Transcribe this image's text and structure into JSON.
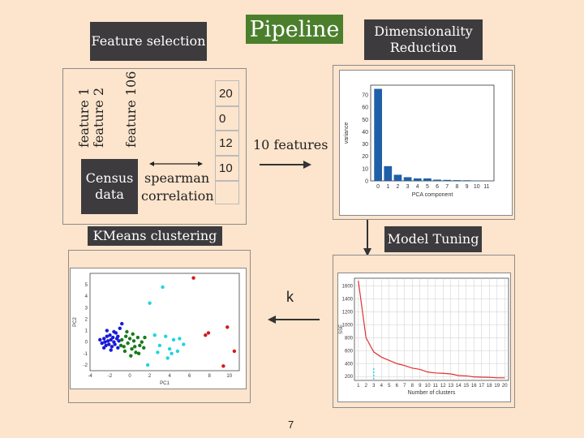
{
  "title": "Pipeline",
  "labels": {
    "feature_selection": "Feature selection",
    "dim_reduction_1": "Dimensionality",
    "dim_reduction_2": "Reduction",
    "kmeans": "KMeans clustering",
    "model_tuning": "Model Tuning"
  },
  "feature_box": {
    "features": [
      "feature 1",
      "feature 2",
      "feature 106"
    ],
    "census_1": "Census",
    "census_2": "data",
    "method_1": "spearman",
    "method_2": "correlation",
    "table_values": [
      "20",
      "0",
      "12",
      "10",
      ""
    ]
  },
  "arrow_labels": {
    "features_out": "10 features",
    "k": "k"
  },
  "page_number": "7",
  "chart_data": [
    {
      "type": "bar",
      "xlabel": "PCA component",
      "ylabel": "variance",
      "categories": [
        "0",
        "1",
        "2",
        "3",
        "4",
        "5",
        "6",
        "7",
        "8",
        "9",
        "10",
        "11"
      ],
      "values": [
        75,
        12,
        5,
        3,
        2,
        2,
        1,
        0.8,
        0.6,
        0.5,
        0.3,
        0.2
      ],
      "ylim": [
        0,
        78
      ],
      "yticks": [
        0,
        10,
        20,
        30,
        40,
        50,
        60,
        70
      ],
      "color": "#1f5fa8"
    },
    {
      "type": "line",
      "xlabel": "Number of clusters",
      "ylabel": "SSE",
      "x": [
        1,
        2,
        3,
        4,
        5,
        6,
        7,
        8,
        9,
        10,
        11,
        12,
        13,
        14,
        15,
        16,
        17,
        18,
        19,
        20
      ],
      "y": [
        1680,
        800,
        580,
        500,
        450,
        400,
        370,
        330,
        310,
        270,
        255,
        250,
        240,
        215,
        210,
        195,
        190,
        188,
        180,
        180
      ],
      "xlim": [
        0.5,
        20.5
      ],
      "ylim": [
        140,
        1720
      ],
      "yticks": [
        200,
        400,
        600,
        800,
        1000,
        1200,
        1400,
        1600
      ],
      "grid": true,
      "color": "#e03030",
      "marker_x": 3
    },
    {
      "type": "scatter",
      "xlabel": "PC1",
      "ylabel": "PC2",
      "xlim": [
        -4,
        11
      ],
      "ylim": [
        -2.5,
        6
      ],
      "xticks": [
        -4,
        -2,
        0,
        2,
        4,
        6,
        8,
        10
      ],
      "yticks": [
        -2,
        -1,
        0,
        1,
        2,
        3,
        4,
        5
      ],
      "series": [
        {
          "color": "#1a1ad8",
          "points": [
            [
              -3,
              0.2
            ],
            [
              -2.8,
              -0.1
            ],
            [
              -2.6,
              0.3
            ],
            [
              -2.5,
              0
            ],
            [
              -2.4,
              -0.3
            ],
            [
              -2.3,
              0.5
            ],
            [
              -2.2,
              0.1
            ],
            [
              -2.1,
              -0.2
            ],
            [
              -2,
              0.6
            ],
            [
              -1.9,
              0.2
            ],
            [
              -1.8,
              -0.4
            ],
            [
              -1.7,
              0.4
            ],
            [
              -1.6,
              0
            ],
            [
              -1.5,
              -0.2
            ],
            [
              -1.4,
              0.8
            ],
            [
              -1.3,
              0.3
            ],
            [
              -1.2,
              -0.5
            ],
            [
              -1.1,
              0.1
            ],
            [
              -1,
              1.2
            ],
            [
              -1.9,
              -0.7
            ],
            [
              -2.6,
              -0.5
            ],
            [
              -1.6,
              0.9
            ],
            [
              -1.2,
              0.5
            ],
            [
              -2.3,
              1
            ],
            [
              -0.8,
              1.6
            ]
          ]
        },
        {
          "color": "#1a7a1a",
          "points": [
            [
              -0.8,
              0.2
            ],
            [
              -0.6,
              -0.4
            ],
            [
              -0.4,
              0.5
            ],
            [
              -0.2,
              -0.1
            ],
            [
              0,
              0.3
            ],
            [
              0.2,
              -0.6
            ],
            [
              0.4,
              0.1
            ],
            [
              0.6,
              -0.9
            ],
            [
              0.8,
              0.4
            ],
            [
              1,
              -0.3
            ],
            [
              1.2,
              0
            ],
            [
              -0.5,
              -0.8
            ],
            [
              0.1,
              -1.2
            ],
            [
              0.5,
              -0.4
            ],
            [
              1.5,
              0.4
            ],
            [
              -0.3,
              0.9
            ],
            [
              0.9,
              -1
            ],
            [
              1.4,
              -0.5
            ],
            [
              0.3,
              0.7
            ],
            [
              -0.9,
              -0.3
            ]
          ]
        },
        {
          "color": "#22d4e0",
          "points": [
            [
              2,
              3.4
            ],
            [
              3.3,
              4.8
            ],
            [
              2.5,
              0.6
            ],
            [
              3,
              -0.3
            ],
            [
              3.6,
              0.5
            ],
            [
              4,
              -0.6
            ],
            [
              4.4,
              0.2
            ],
            [
              4.8,
              -0.8
            ],
            [
              5,
              0.3
            ],
            [
              3.8,
              -1.4
            ],
            [
              4.2,
              -1
            ],
            [
              2.8,
              -0.9
            ],
            [
              5.4,
              -0.2
            ],
            [
              1.8,
              -2
            ]
          ]
        },
        {
          "color": "#d41a1a",
          "points": [
            [
              6.4,
              5.6
            ],
            [
              7.6,
              0.6
            ],
            [
              7.9,
              0.8
            ],
            [
              9.4,
              -2.1
            ],
            [
              9.8,
              1.3
            ],
            [
              10.5,
              -0.8
            ]
          ]
        }
      ]
    }
  ]
}
